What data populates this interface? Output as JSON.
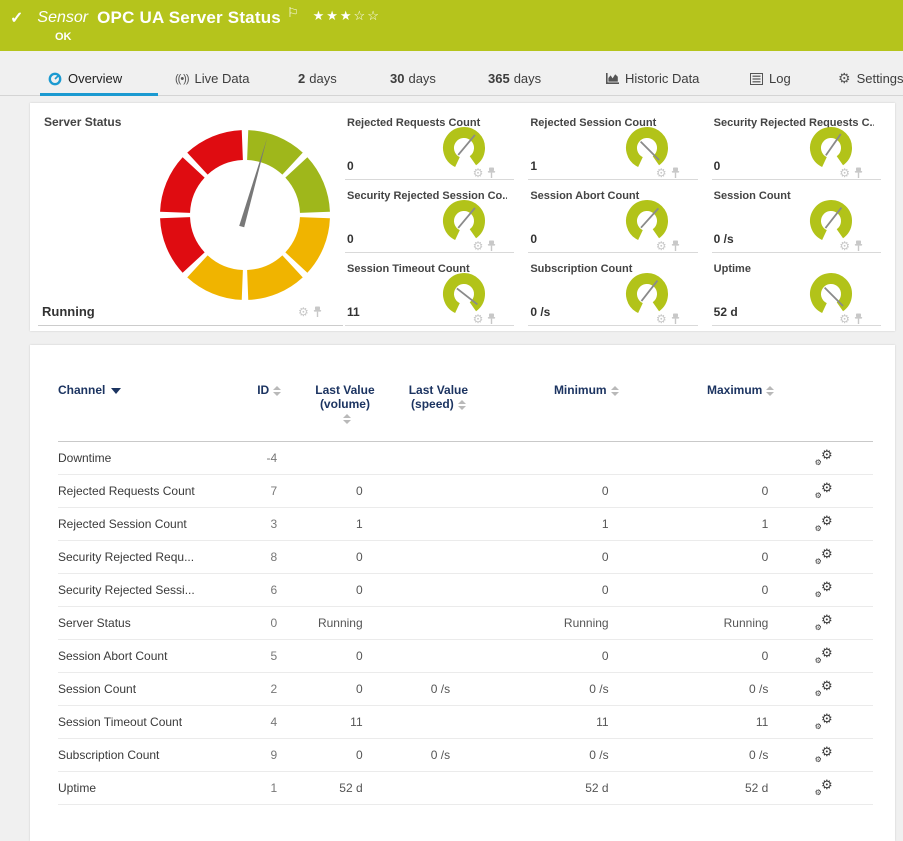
{
  "header": {
    "check_icon": "✓",
    "kind": "Sensor",
    "title": "OPC UA Server Status",
    "flag_icon": "⚐",
    "stars": "★★★☆☆",
    "status": "OK",
    "bar_color": "#b5c41c"
  },
  "tabs": [
    {
      "label": "Overview",
      "icon": "gauge-icon",
      "active": true
    },
    {
      "label": "Live Data",
      "icon": "signal-icon",
      "signal_glyph": "((•))"
    },
    {
      "num": "2",
      "unit": "days"
    },
    {
      "num": "30",
      "unit": "days"
    },
    {
      "num": "365",
      "unit": "days"
    },
    {
      "label": "Historic Data",
      "icon": "area-chart-icon"
    },
    {
      "label": "Log",
      "icon": "list-icon"
    },
    {
      "label": "Settings",
      "icon": "gear-icon",
      "gear_glyph": "⚙"
    }
  ],
  "accent_blue": "#1b9ad1",
  "overview_panel": {
    "main_gauge": {
      "title": "Server Status",
      "value": "Running",
      "needle_angle": 16,
      "segments_clockwise_from_top": [
        "green",
        "green",
        "yellow",
        "yellow",
        "yellow",
        "red",
        "red",
        "red"
      ],
      "colors": {
        "green": "#9fb71b",
        "yellow": "#f0b400",
        "red": "#df0c11",
        "needle": "#787878"
      }
    },
    "mini_gauges": [
      {
        "title": "Rejected Requests Count",
        "value": "0",
        "needle_angle": 40
      },
      {
        "title": "Rejected Session Count",
        "value": "1",
        "needle_angle": 135
      },
      {
        "title": "Security Rejected Requests C...",
        "value": "0",
        "needle_angle": 35
      },
      {
        "title": "Security Rejected Session Co...",
        "value": "0",
        "needle_angle": 40
      },
      {
        "title": "Session Abort Count",
        "value": "0",
        "needle_angle": 42
      },
      {
        "title": "Session Count",
        "value": "0 /s",
        "needle_angle": 38
      },
      {
        "title": "Session Timeout Count",
        "value": "11",
        "needle_angle": 128
      },
      {
        "title": "Subscription Count",
        "value": "0 /s",
        "needle_angle": 38
      },
      {
        "title": "Uptime",
        "value": "52 d",
        "needle_angle": 135
      }
    ],
    "mini_arc_color": "#b2c319",
    "mini_needle_color": "#8a8a8a"
  },
  "table": {
    "headers": {
      "channel": "Channel",
      "id": "ID",
      "last_value_volume_line1": "Last Value",
      "last_value_volume_line2": "(volume)",
      "last_value_speed_line1": "Last Value",
      "last_value_speed_line2": "(speed)",
      "minimum": "Minimum",
      "maximum": "Maximum"
    },
    "rows": [
      {
        "channel": "Downtime",
        "id": "-4",
        "lvv": "",
        "lvs": "",
        "min": "",
        "max": ""
      },
      {
        "channel": "Rejected Requests Count",
        "id": "7",
        "lvv": "0",
        "lvs": "",
        "min": "0",
        "max": "0"
      },
      {
        "channel": "Rejected Session Count",
        "id": "3",
        "lvv": "1",
        "lvs": "",
        "min": "1",
        "max": "1"
      },
      {
        "channel": "Security Rejected Requ...",
        "id": "8",
        "lvv": "0",
        "lvs": "",
        "min": "0",
        "max": "0"
      },
      {
        "channel": "Security Rejected Sessi...",
        "id": "6",
        "lvv": "0",
        "lvs": "",
        "min": "0",
        "max": "0"
      },
      {
        "channel": "Server Status",
        "id": "0",
        "lvv": "Running",
        "lvs": "",
        "min": "Running",
        "max": "Running"
      },
      {
        "channel": "Session Abort Count",
        "id": "5",
        "lvv": "0",
        "lvs": "",
        "min": "0",
        "max": "0"
      },
      {
        "channel": "Session Count",
        "id": "2",
        "lvv": "0",
        "lvs": "0 /s",
        "min": "0 /s",
        "max": "0 /s"
      },
      {
        "channel": "Session Timeout Count",
        "id": "4",
        "lvv": "11",
        "lvs": "",
        "min": "11",
        "max": "11"
      },
      {
        "channel": "Subscription Count",
        "id": "9",
        "lvv": "0",
        "lvs": "0 /s",
        "min": "0 /s",
        "max": "0 /s"
      },
      {
        "channel": "Uptime",
        "id": "1",
        "lvv": "52 d",
        "lvs": "",
        "min": "52 d",
        "max": "52 d"
      }
    ],
    "row_action_icon": "edit-channel-settings-icon",
    "gear_glyph": "⚙"
  }
}
